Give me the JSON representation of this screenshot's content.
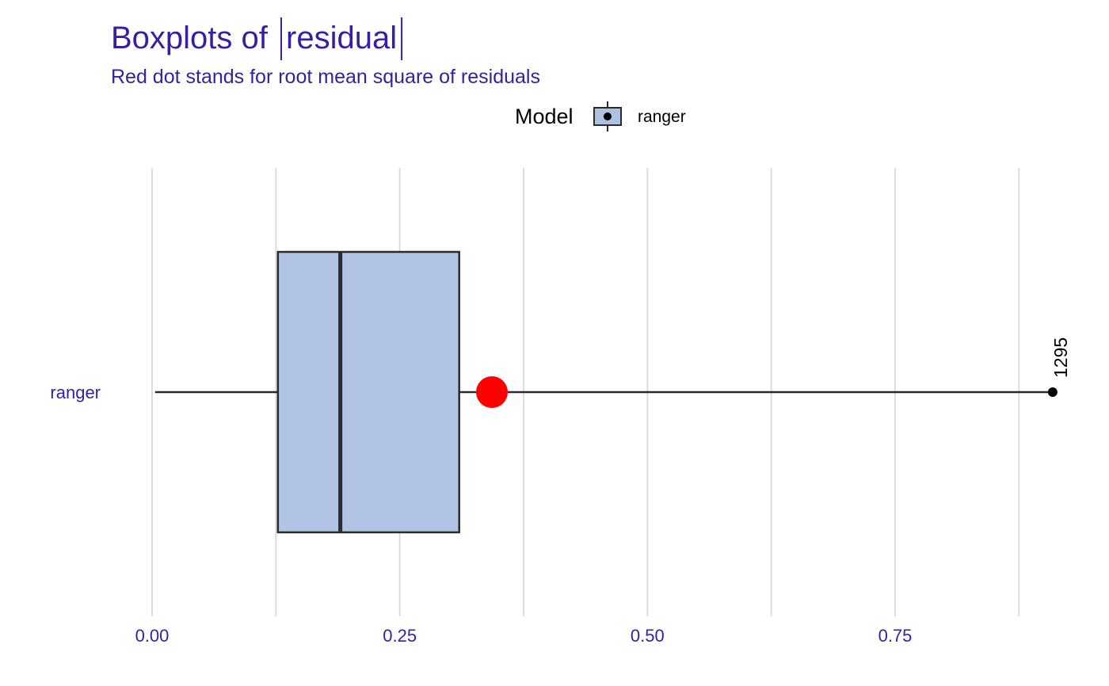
{
  "chart_data": {
    "type": "boxplot",
    "title": "Boxplots of |residual|",
    "title_prefix": "Boxplots of ",
    "title_var": "residual",
    "subtitle": "Red dot stands for root mean square of residuals",
    "legend": {
      "title": "Model",
      "position": "top",
      "entries": [
        "ranger"
      ]
    },
    "categories": [
      "ranger"
    ],
    "series": [
      {
        "name": "ranger",
        "whisker_low": 0.003,
        "q1": 0.127,
        "median": 0.19,
        "q3": 0.31,
        "whisker_high": 0.909,
        "rms": 0.343,
        "outliers": [
          {
            "value": 0.909,
            "label": "1295"
          }
        ]
      }
    ],
    "x_ticks": [
      "0.00",
      "0.25",
      "0.50",
      "0.75"
    ],
    "x_tick_values": [
      0,
      0.25,
      0.5,
      0.75
    ],
    "xlim": [
      -0.01,
      0.92
    ],
    "grid": true,
    "colors": {
      "box_fill": "#aec1e1",
      "box_stroke": "#2b2b2b",
      "rms_dot": "#ff0000",
      "text": "#371ea3",
      "grid": "#dcdcdc"
    }
  }
}
